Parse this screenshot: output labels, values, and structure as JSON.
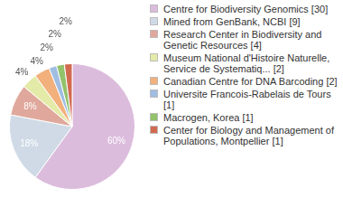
{
  "chart_data": {
    "type": "pie",
    "categories": [
      "Centre for Biodiversity Genomics [30]",
      "Mined from GenBank, NCBI [9]",
      "Research Center in Biodiversity and Genetic Resources [4]",
      "Museum National d'Histoire Naturelle, Service de Systematiq... [2]",
      "Canadian Centre for DNA Barcoding [2]",
      "Universite Francois-Rabelais de Tours [1]",
      "Macrogen, Korea [1]",
      "Center for Biology and Management of Populations, Montpellier [1]"
    ],
    "values": [
      60,
      18,
      8,
      4,
      4,
      2,
      2,
      2
    ],
    "value_labels": [
      "60%",
      "18%",
      "8%",
      "4%",
      "4%",
      "2%",
      "2%",
      "2%"
    ],
    "colors": [
      "#dcbcdc",
      "#cfdae6",
      "#e0a89c",
      "#e4eaa8",
      "#f2b07c",
      "#a0bde2",
      "#92c26c",
      "#d26a50"
    ],
    "data_labels": true,
    "legend": "right"
  }
}
